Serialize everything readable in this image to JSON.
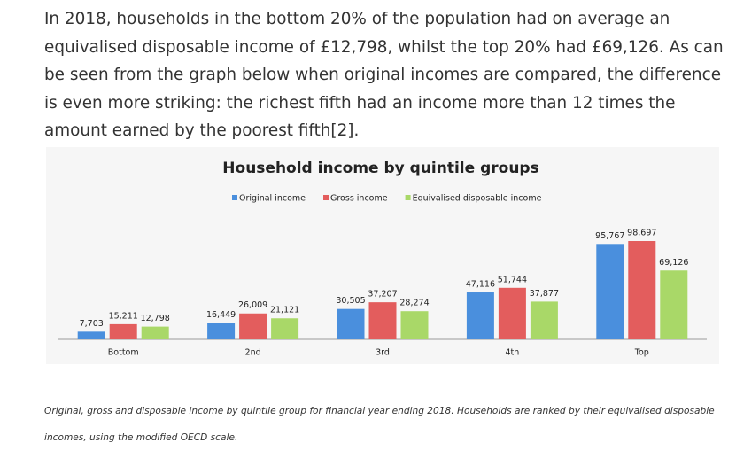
{
  "paragraph": "In 2018, households in the bottom 20% of the population had on average an equivalised disposable income of £12,798, whilst the top 20% had £69,126. As can be seen from the graph below when original incomes are compared, the difference is even more striking: the richest fifth had an income more than 12 times the amount earned by the poorest fifth[2].",
  "chart_data": {
    "type": "bar",
    "title": "Household income by quintile groups",
    "categories": [
      "Bottom",
      "2nd",
      "3rd",
      "4th",
      "Top"
    ],
    "series": [
      {
        "name": "Original income",
        "color": "#4a8fdd",
        "values": [
          7703,
          16449,
          30505,
          47116,
          95767
        ],
        "value_labels": [
          "7,703",
          "16,449",
          "30,505",
          "47,116",
          "95,767"
        ]
      },
      {
        "name": "Gross income",
        "color": "#e35d5d",
        "values": [
          15211,
          26009,
          37207,
          51744,
          98697
        ],
        "value_labels": [
          "15,211",
          "26,009",
          "37,207",
          "51,744",
          "98,697"
        ]
      },
      {
        "name": "Equivalised disposable income",
        "color": "#a9d868",
        "values": [
          12798,
          21121,
          28274,
          37877,
          69126
        ],
        "value_labels": [
          "12,798",
          "21,121",
          "28,274",
          "37,877",
          "69,126"
        ]
      }
    ]
  },
  "caption": "Original, gross and disposable income by quintile group for financial year ending 2018. Households are ranked by their equivalised disposable incomes, using the modified OECD scale."
}
